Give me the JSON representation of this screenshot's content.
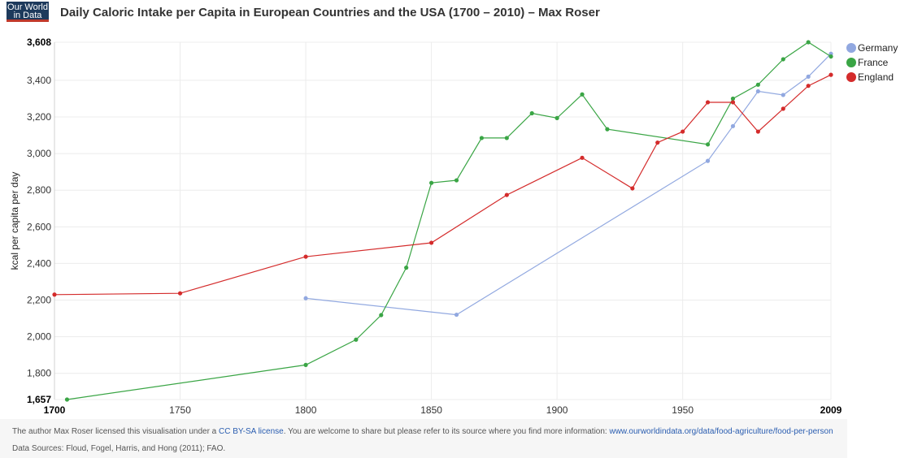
{
  "logo": {
    "line1": "Our World",
    "line2": "in Data"
  },
  "title": "Daily Caloric Intake per Capita in European Countries and the USA (1700 – 2010) – Max Roser",
  "chart_data": {
    "type": "line",
    "ylabel": "kcal per capita per day",
    "xlim": [
      1700,
      2009
    ],
    "ylim": [
      1657,
      3608
    ],
    "x_ticks": [
      1700,
      1750,
      1800,
      1850,
      1900,
      1950,
      2009
    ],
    "x_tick_labels": [
      "1700",
      "1750",
      "1800",
      "1850",
      "1900",
      "1950",
      "2009"
    ],
    "y_ticks": [
      1657,
      1800,
      2000,
      2200,
      2400,
      2600,
      2800,
      3000,
      3200,
      3400,
      3608
    ],
    "y_tick_labels": [
      "1,657",
      "1,800",
      "2,000",
      "2,200",
      "2,400",
      "2,600",
      "2,800",
      "3,000",
      "3,200",
      "3,400",
      "3,608"
    ],
    "grid": true,
    "legend_position": "right",
    "series": [
      {
        "name": "Germany",
        "color": "#91a8e0",
        "points": [
          [
            1800,
            2210
          ],
          [
            1860,
            2120
          ],
          [
            1960,
            2960
          ],
          [
            1970,
            3150
          ],
          [
            1980,
            3340
          ],
          [
            1990,
            3320
          ],
          [
            2000,
            3420
          ],
          [
            2009,
            3545
          ]
        ]
      },
      {
        "name": "France",
        "color": "#3aa545",
        "points": [
          [
            1705,
            1657
          ],
          [
            1800,
            1846
          ],
          [
            1820,
            1984
          ],
          [
            1830,
            2118
          ],
          [
            1840,
            2377
          ],
          [
            1850,
            2840
          ],
          [
            1860,
            2854
          ],
          [
            1870,
            3085
          ],
          [
            1880,
            3085
          ],
          [
            1890,
            3220
          ],
          [
            1900,
            3194
          ],
          [
            1910,
            3323
          ],
          [
            1920,
            3133
          ],
          [
            1960,
            3050
          ],
          [
            1970,
            3300
          ],
          [
            1980,
            3376
          ],
          [
            1990,
            3515
          ],
          [
            2000,
            3608
          ],
          [
            2009,
            3530
          ]
        ]
      },
      {
        "name": "England",
        "color": "#d42b2b",
        "points": [
          [
            1700,
            2230
          ],
          [
            1750,
            2237
          ],
          [
            1800,
            2437
          ],
          [
            1850,
            2513
          ],
          [
            1880,
            2774
          ],
          [
            1910,
            2977
          ],
          [
            1930,
            2810
          ],
          [
            1940,
            3060
          ],
          [
            1950,
            3120
          ],
          [
            1960,
            3280
          ],
          [
            1970,
            3280
          ],
          [
            1980,
            3120
          ],
          [
            1990,
            3245
          ],
          [
            2000,
            3370
          ],
          [
            2009,
            3430
          ]
        ]
      }
    ]
  },
  "footer": {
    "license_prefix": "The author Max Roser licensed this visualisation under a ",
    "license_link": "CC BY-SA license",
    "license_mid": ". You are welcome to share but please refer to its source where you find more information: ",
    "source_url": "www.ourworldindata.org/data/food-agriculture/food-per-person",
    "sources": "Data Sources: Floud, Fogel, Harris, and Hong (2011); FAO."
  }
}
